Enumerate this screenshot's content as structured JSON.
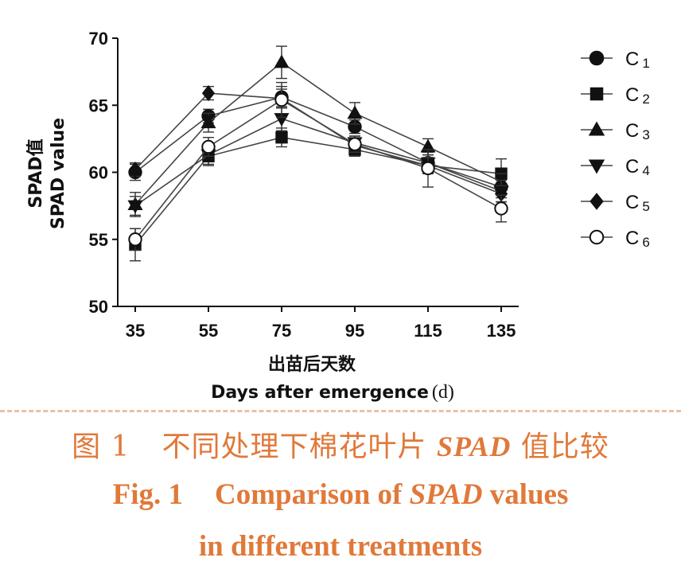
{
  "chart_data": {
    "type": "line",
    "title": "",
    "xlabel_cn": "出苗后天数",
    "xlabel_en": "Days after emergence",
    "xunit": "(d)",
    "ylabel_cn": "SPAD值",
    "ylabel_en": "SPAD value",
    "x": [
      35,
      55,
      75,
      95,
      115,
      135
    ],
    "xtick_labels": [
      "35",
      "55",
      "75",
      "95",
      "115",
      "135"
    ],
    "ylim": [
      50,
      70
    ],
    "yticks": [
      50,
      55,
      60,
      65,
      70
    ],
    "ytick_labels": [
      "50",
      "55",
      "60",
      "65",
      "70"
    ],
    "grid": false,
    "legend_position": "right",
    "series": [
      {
        "name": "C",
        "sub": "1",
        "marker": "circle-filled",
        "values": [
          60.0,
          64.2,
          65.6,
          63.4,
          60.7,
          58.9
        ],
        "err": [
          0.6,
          0.5,
          0.8,
          0.5,
          0.8,
          0.8
        ]
      },
      {
        "name": "C",
        "sub": "2",
        "marker": "square-filled",
        "values": [
          54.6,
          61.2,
          62.6,
          61.7,
          60.5,
          59.9
        ],
        "err": [
          1.2,
          0.6,
          0.7,
          0.5,
          0.6,
          1.1
        ]
      },
      {
        "name": "C",
        "sub": "3",
        "marker": "triangle-up-filled",
        "values": [
          57.6,
          63.7,
          68.2,
          64.4,
          61.9,
          59.3
        ],
        "err": [
          0.9,
          0.7,
          1.2,
          0.8,
          0.6,
          0.6
        ]
      },
      {
        "name": "C",
        "sub": "4",
        "marker": "triangle-down-filled",
        "values": [
          57.5,
          61.3,
          64.0,
          62.2,
          60.7,
          58.6
        ],
        "err": [
          0.7,
          0.8,
          0.9,
          0.5,
          0.6,
          0.8
        ]
      },
      {
        "name": "C",
        "sub": "5",
        "marker": "diamond-filled",
        "values": [
          60.2,
          65.9,
          65.5,
          62.0,
          60.5,
          58.4
        ],
        "err": [
          0.5,
          0.5,
          0.7,
          0.5,
          0.6,
          0.6
        ]
      },
      {
        "name": "C",
        "sub": "6",
        "marker": "circle-open",
        "values": [
          55.0,
          61.9,
          65.4,
          62.1,
          60.3,
          57.3
        ],
        "err": [
          0.8,
          0.7,
          1.3,
          0.6,
          1.4,
          1.0
        ]
      }
    ]
  },
  "caption": {
    "cn_label": "图 1",
    "cn_pre": "不同处理下棉花叶片",
    "cn_italic": "SPAD",
    "cn_post": "值比较",
    "en_label": "Fig. 1",
    "en_pre": "Comparison of",
    "en_italic": "SPAD",
    "en_post": "values",
    "en_line2": "in different treatments"
  },
  "colors": {
    "line": "#444444",
    "marker": "#111111",
    "caption": "#e0793a"
  }
}
